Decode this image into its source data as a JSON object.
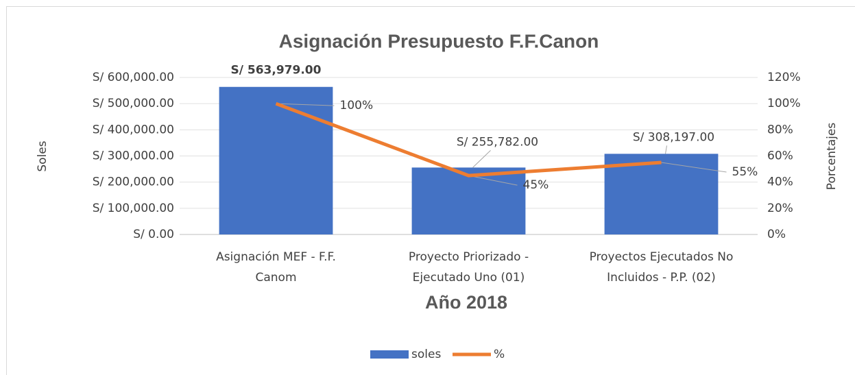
{
  "chart_data": {
    "type": "bar",
    "title": "Asignación Presupuesto F.F.Canon",
    "x_label": "Año 2018",
    "y_label": "Soles",
    "y2_label": "Porcentajes",
    "categories": [
      [
        "Asignación   MEF -   F.F.",
        "Canom"
      ],
      [
        "Proyecto  Priorizado -",
        "Ejecutado  Uno (01)"
      ],
      [
        "Proyectos Ejecutados No",
        "Incluidos - P.P. (02)"
      ]
    ],
    "series": [
      {
        "name": "soles",
        "type": "bar",
        "color": "#4472c4",
        "values": [
          563979,
          255782,
          308197
        ],
        "value_labels": [
          "S/ 563,979.00",
          "S/ 255,782.00",
          "S/ 308,197.00"
        ]
      },
      {
        "name": "%",
        "type": "line",
        "axis": "y2",
        "color": "#ed7d31",
        "values": [
          100,
          45,
          55
        ],
        "value_labels": [
          "100%",
          "45%",
          "55%"
        ]
      }
    ],
    "ylim": [
      0,
      600000
    ],
    "yticks": [
      {
        "value": 0,
        "label": "S/ 0.00"
      },
      {
        "value": 100000,
        "label": "S/ 100,000.00"
      },
      {
        "value": 200000,
        "label": "S/ 200,000.00"
      },
      {
        "value": 300000,
        "label": "S/ 300,000.00"
      },
      {
        "value": 400000,
        "label": "S/ 400,000.00"
      },
      {
        "value": 500000,
        "label": "S/ 500,000.00"
      },
      {
        "value": 600000,
        "label": "S/ 600,000.00"
      }
    ],
    "y2lim": [
      0,
      120
    ],
    "y2ticks": [
      {
        "value": 0,
        "label": "0%"
      },
      {
        "value": 20,
        "label": "20%"
      },
      {
        "value": 40,
        "label": "40%"
      },
      {
        "value": 60,
        "label": "60%"
      },
      {
        "value": 80,
        "label": "80%"
      },
      {
        "value": 100,
        "label": "100%"
      },
      {
        "value": 120,
        "label": "120%"
      }
    ],
    "grid": true,
    "legend": "bottom"
  }
}
